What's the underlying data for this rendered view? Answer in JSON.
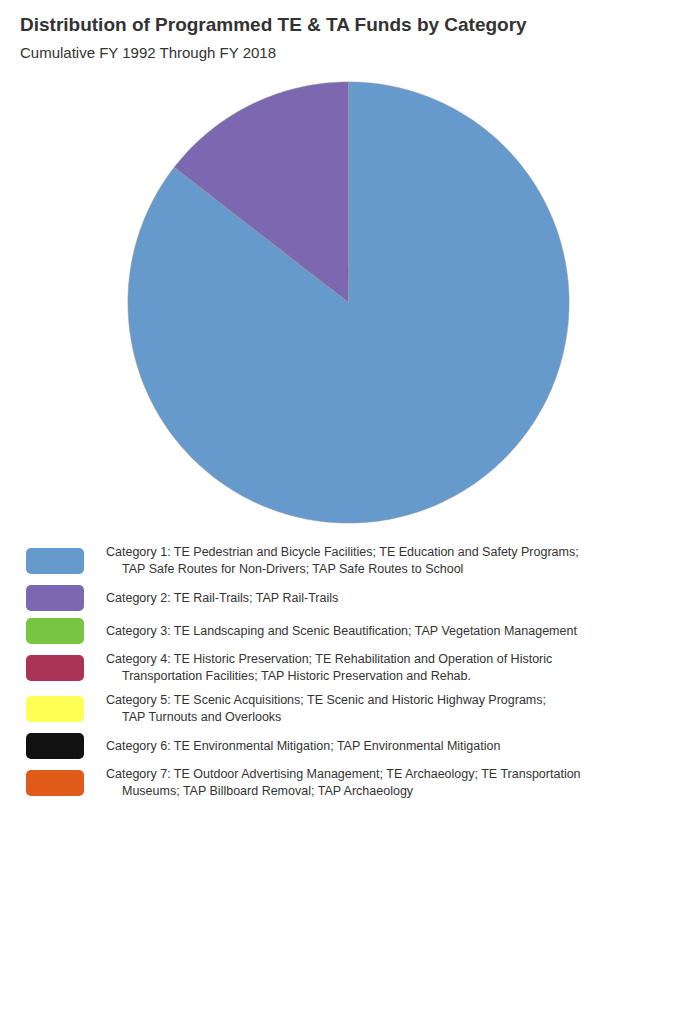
{
  "chart_data": {
    "type": "pie",
    "title": "Distribution of Programmed TE & TA Funds by Category",
    "subtitle": "Cumulative FY 1992 Through FY 2018",
    "categories": [
      "Category 1: TE Pedestrian and Bicycle Facilities; TE Education and Safety Programs;\nTAP Safe Routes for Non-Drivers; TAP Safe Routes to School",
      "Category 2: TE Rail-Trails; TAP Rail-Trails",
      "Category 3: TE Landscaping and Scenic Beautification; TAP Vegetation Management",
      "Category 4: TE Historic Preservation; TE Rehabilitation and Operation of Historic\nTransportation Facilities; TAP Historic Preservation and Rehab.",
      "Category 5: TE Scenic Acquisitions; TE Scenic and Historic Highway Programs;\nTAP Turnouts and Overlooks",
      "Category 6: TE Environmental Mitigation; TAP Environmental Mitigation",
      "Category 7: TE Outdoor Advertising Management; TE Archaeology; TE Transportation\nMuseums; TAP Billboard Removal; TAP Archaeology"
    ],
    "values": [
      85.5,
      14.5,
      0.0001,
      0.0001,
      0.0001,
      0.0001,
      0.0001
    ],
    "colors": [
      "#6699CC",
      "#7B68B0",
      "#77C540",
      "#A93455",
      "#FFFF55",
      "#111111",
      "#E05A1A"
    ],
    "legend": "bottom"
  }
}
